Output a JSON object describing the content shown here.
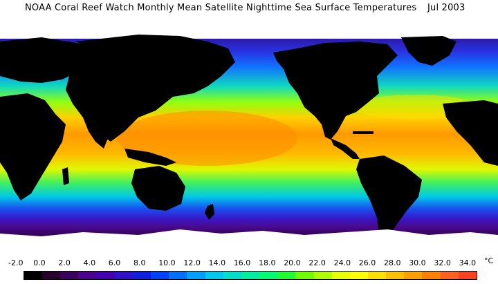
{
  "title": {
    "main": "NOAA Coral Reef Watch Monthly Mean Satellite Nighttime Sea Surface Temperatures",
    "date": "Jul 2003"
  },
  "scale": {
    "labels": [
      "-2.0",
      "0.0",
      "2.0",
      "4.0",
      "6.0",
      "8.0",
      "10.0",
      "12.0",
      "14.0",
      "16.0",
      "18.0",
      "20.0",
      "22.0",
      "24.0",
      "26.0",
      "28.0",
      "30.0",
      "32.0",
      "34.0"
    ],
    "unit": "°C",
    "colors": [
      "#000000",
      "#2a0030",
      "#3c0060",
      "#4a0090",
      "#4400b0",
      "#3010c8",
      "#1020e0",
      "#0040ff",
      "#0070ff",
      "#00a0ff",
      "#00c8f0",
      "#00e0c8",
      "#00f0a0",
      "#00ff70",
      "#20ff30",
      "#70ff00",
      "#b0ff00",
      "#e8ff00",
      "#ffff00",
      "#ffe000",
      "#ffc000",
      "#ffa000",
      "#ff8000",
      "#ff6020",
      "#ff4020"
    ]
  },
  "map": {
    "ocean_bands": [
      {
        "lat_label": "arctic",
        "color": "#3a2bd0"
      },
      {
        "lat_label": "north-temperate",
        "color": "#1ec0ff"
      },
      {
        "lat_label": "north-subtropic",
        "color": "#b8ff00"
      },
      {
        "lat_label": "tropic",
        "color": "#ff9a00"
      },
      {
        "lat_label": "south-subtropic",
        "color": "#c8f000"
      },
      {
        "lat_label": "south-temperate",
        "color": "#00d0d8"
      },
      {
        "lat_label": "southern-ocean",
        "color": "#2a30e0"
      },
      {
        "lat_label": "antarctic-margin",
        "color": "#4a0a90"
      }
    ],
    "land_color": "#000000",
    "ice_color": "#ffffff"
  }
}
